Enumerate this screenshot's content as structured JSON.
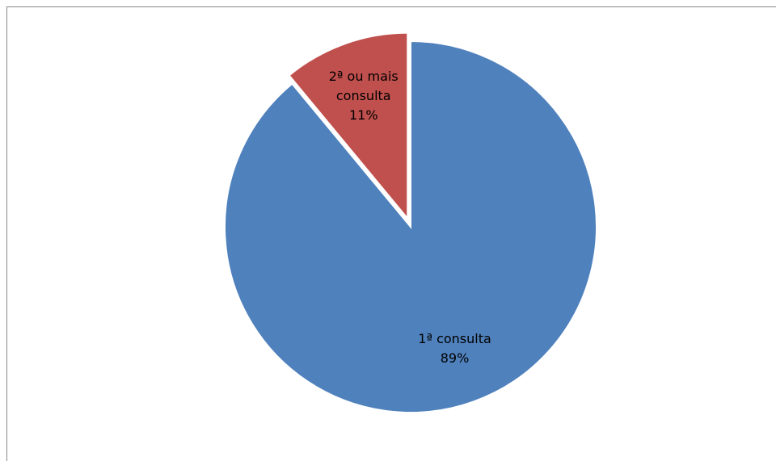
{
  "chart_data": {
    "type": "pie",
    "categories": [
      "1ª consulta",
      "2ª ou mais consulta"
    ],
    "values": [
      89,
      11
    ],
    "value_labels": [
      "89%",
      "11%"
    ],
    "colors": [
      "#4f81bd",
      "#c0504d"
    ]
  }
}
